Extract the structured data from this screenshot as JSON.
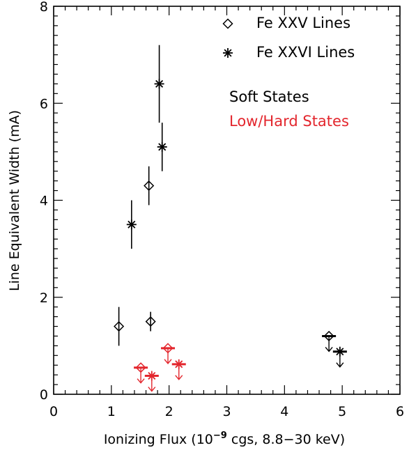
{
  "chart_data": {
    "type": "scatter",
    "xlabel": {
      "main": "Ionizing Flux (10",
      "exp": "−9",
      "tail": " cgs, 8.8−30 keV)"
    },
    "ylabel": "Line Equivalent Width (mA)",
    "xlim": [
      0,
      6
    ],
    "ylim": [
      0,
      8
    ],
    "x_ticks": [
      0,
      1,
      2,
      3,
      4,
      5,
      6
    ],
    "x_tick_labels": [
      "0",
      "1",
      "2",
      "3",
      "4",
      "5",
      "6"
    ],
    "y_ticks": [
      0,
      2,
      4,
      6,
      8
    ],
    "y_tick_labels": [
      "0",
      "2",
      "4",
      "6",
      "8"
    ],
    "grid": false,
    "legend_position": "top-right",
    "legend": {
      "markers": [
        {
          "marker": "diamond",
          "label": "Fe XXV Lines"
        },
        {
          "marker": "asterisk",
          "label": "Fe XXVI Lines"
        }
      ],
      "states": [
        {
          "label": "Soft States",
          "color": "#000000"
        },
        {
          "label": "Low/Hard States",
          "color": "#e3262d"
        }
      ]
    },
    "series": [
      {
        "marker": "diamond",
        "state": "soft",
        "color": "#000000",
        "points": [
          {
            "x": 1.13,
            "y": 1.4,
            "yerr_low": 1.0,
            "yerr_high": 1.8,
            "upper_limit": false
          },
          {
            "x": 1.65,
            "y": 4.3,
            "yerr_low": 3.9,
            "yerr_high": 4.7,
            "upper_limit": false
          },
          {
            "x": 1.68,
            "y": 1.5,
            "yerr_low": 1.3,
            "yerr_high": 1.7,
            "upper_limit": false
          },
          {
            "x": 4.77,
            "y": 1.2,
            "upper_limit": true
          }
        ]
      },
      {
        "marker": "asterisk",
        "state": "soft",
        "color": "#000000",
        "points": [
          {
            "x": 1.35,
            "y": 3.5,
            "yerr_low": 3.0,
            "yerr_high": 4.0,
            "upper_limit": false
          },
          {
            "x": 1.83,
            "y": 6.4,
            "yerr_low": 5.6,
            "yerr_high": 7.2,
            "upper_limit": false
          },
          {
            "x": 1.88,
            "y": 5.1,
            "yerr_low": 4.6,
            "yerr_high": 5.6,
            "upper_limit": false
          },
          {
            "x": 4.96,
            "y": 0.88,
            "upper_limit": true
          }
        ]
      },
      {
        "marker": "diamond",
        "state": "low-hard",
        "color": "#e3262d",
        "points": [
          {
            "x": 1.51,
            "y": 0.55,
            "upper_limit": true
          },
          {
            "x": 1.98,
            "y": 0.95,
            "upper_limit": true
          }
        ]
      },
      {
        "marker": "asterisk",
        "state": "low-hard",
        "color": "#e3262d",
        "points": [
          {
            "x": 1.7,
            "y": 0.38,
            "upper_limit": true
          },
          {
            "x": 2.17,
            "y": 0.62,
            "upper_limit": true
          }
        ]
      }
    ]
  }
}
